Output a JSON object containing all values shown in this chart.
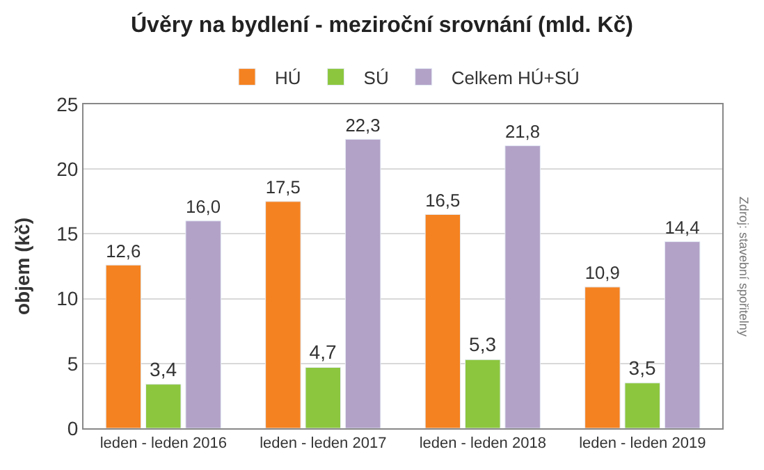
{
  "chart_data": {
    "type": "bar",
    "title": "Úvěry na bydlení - meziroční srovnání (mld. Kč)",
    "ylabel": "objem (kč)",
    "categories": [
      "leden - leden 2016",
      "leden - leden 2017",
      "leden - leden 2018",
      "leden - leden 2019"
    ],
    "series": [
      {
        "name": "HÚ",
        "color": "#f58220",
        "values": [
          12.6,
          17.5,
          16.5,
          10.9
        ],
        "value_labels": [
          "12,6",
          "17,5",
          "16,5",
          "10,9"
        ]
      },
      {
        "name": "SÚ",
        "color": "#8cc63e",
        "values": [
          3.4,
          4.7,
          5.3,
          3.5
        ],
        "value_labels": [
          "3,4",
          "4,7",
          "5,3",
          "3,5"
        ]
      },
      {
        "name": "Celkem HÚ+SÚ",
        "color": "#b3a2c7",
        "values": [
          16.0,
          22.3,
          21.8,
          14.4
        ],
        "value_labels": [
          "16,0",
          "22,3",
          "21,8",
          "14,4"
        ]
      }
    ],
    "ylim": [
      0,
      25
    ],
    "yticks": [
      0,
      5,
      10,
      15,
      20,
      25
    ],
    "grid": "y",
    "legend": "top",
    "annotations": [
      "Zdroj: stavební spořitelny"
    ]
  }
}
